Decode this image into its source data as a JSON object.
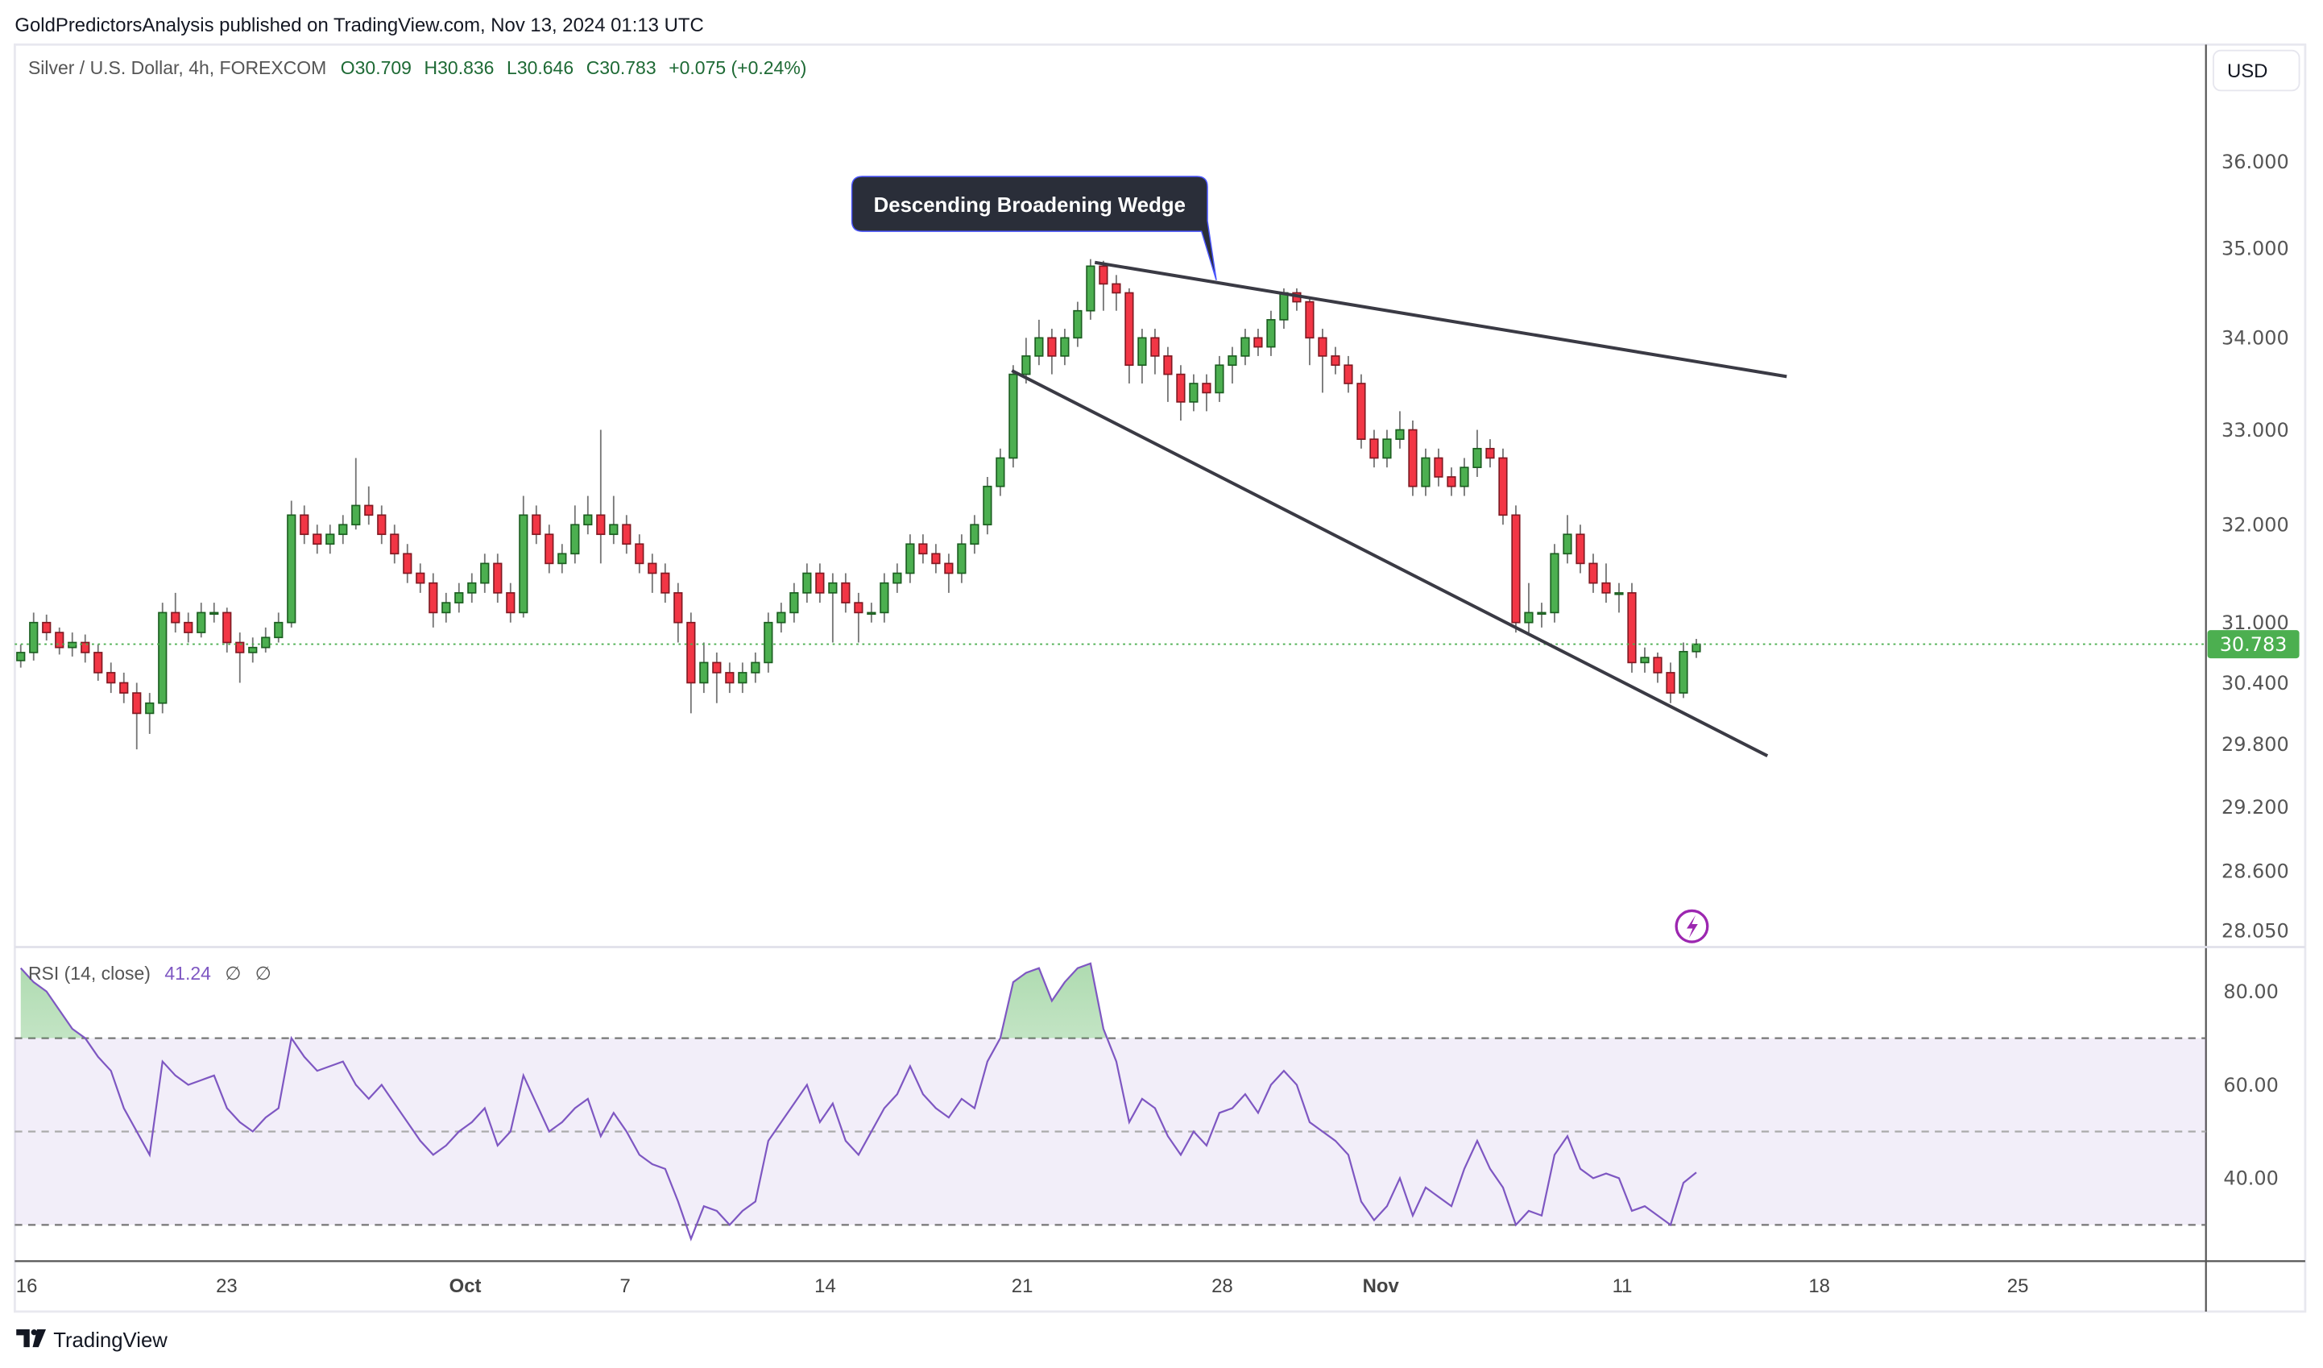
{
  "header": {
    "published": "GoldPredictorsAnalysis published on TradingView.com, Nov 13, 2024 01:13 UTC"
  },
  "legend": {
    "symbol": "Silver / U.S. Dollar, 4h, FOREXCOM",
    "open": "O30.709",
    "high": "H30.836",
    "low": "L30.646",
    "close": "C30.783",
    "change": "+0.075 (+0.24%)"
  },
  "currency_button": "USD",
  "last_price_label": "30.783",
  "annotation": "Descending Broadening Wedge",
  "rsi_legend": {
    "name": "RSI (14, close)",
    "value": "41.24",
    "extra1": "∅",
    "extra2": "∅"
  },
  "footer": {
    "brand": "TradingView"
  },
  "icons": {
    "alert": "lightning-icon",
    "logo": "tradingview-logo-icon"
  },
  "colors": {
    "up": "#4caf50",
    "up_border": "#1b5e20",
    "down": "#f23645",
    "down_border": "#801922",
    "wick": "#777777",
    "rsi": "#7e57c2",
    "last_price": "#4caf50",
    "trendline": "#3a3a44",
    "annotation_bg": "#2a2e39"
  },
  "chart_data": [
    {
      "type": "candlestick",
      "title": "Silver / U.S. Dollar, 4h, FOREXCOM",
      "y_scale": "log",
      "ylim": [
        28.05,
        36.2
      ],
      "y_ticks": [
        "36.000",
        "35.000",
        "34.000",
        "33.000",
        "32.000",
        "31.000",
        "30.400",
        "29.800",
        "29.200",
        "28.600",
        "28.050"
      ],
      "x_ticks": [
        "16",
        "23",
        "Oct",
        "7",
        "14",
        "21",
        "28",
        "Nov",
        "11",
        "18",
        "25"
      ],
      "last_price": 30.783,
      "grid": false,
      "open": [
        30.62,
        30.7,
        31.0,
        30.9,
        30.75,
        30.8,
        30.7,
        30.5,
        30.4,
        30.3,
        30.1,
        30.2,
        31.1,
        31.0,
        30.9,
        31.1,
        31.1,
        30.8,
        30.7,
        30.75,
        30.85,
        31.0,
        32.1,
        31.9,
        31.8,
        31.9,
        32.0,
        32.2,
        32.1,
        31.9,
        31.7,
        31.5,
        31.4,
        31.1,
        31.2,
        31.3,
        31.4,
        31.6,
        31.3,
        31.1,
        32.1,
        31.9,
        31.6,
        31.7,
        32.0,
        32.1,
        31.9,
        32.0,
        31.8,
        31.6,
        31.5,
        31.3,
        31.0,
        30.4,
        30.6,
        30.5,
        30.4,
        30.5,
        30.6,
        31.0,
        31.1,
        31.3,
        31.5,
        31.3,
        31.4,
        31.2,
        31.1,
        31.1,
        31.4,
        31.5,
        31.8,
        31.7,
        31.6,
        31.5,
        31.8,
        32.0,
        32.4,
        32.7,
        33.6,
        33.8,
        34.0,
        33.8,
        34.0,
        34.3,
        34.8,
        34.6,
        34.5,
        33.7,
        34.0,
        33.8,
        33.6,
        33.3,
        33.5,
        33.4,
        33.7,
        33.8,
        34.0,
        33.9,
        34.2,
        34.5,
        34.4,
        34.0,
        33.8,
        33.7,
        33.5,
        32.9,
        32.7,
        32.9,
        33.0,
        32.4,
        32.7,
        32.5,
        32.4,
        32.6,
        32.8,
        32.7,
        32.1,
        31.0,
        31.1,
        31.1,
        31.7,
        31.9,
        31.6,
        31.4,
        31.3,
        31.3,
        30.6,
        30.65,
        30.5,
        30.3,
        30.709
      ],
      "high": [
        30.78,
        31.1,
        31.08,
        30.95,
        30.9,
        30.88,
        30.78,
        30.6,
        30.5,
        30.4,
        30.3,
        31.2,
        31.3,
        31.1,
        31.2,
        31.2,
        31.15,
        30.9,
        30.85,
        30.95,
        31.1,
        32.25,
        32.2,
        32.0,
        32.0,
        32.1,
        32.7,
        32.4,
        32.2,
        32.0,
        31.8,
        31.6,
        31.5,
        31.3,
        31.4,
        31.5,
        31.7,
        31.7,
        31.4,
        32.3,
        32.2,
        32.0,
        31.8,
        32.2,
        32.3,
        33.0,
        32.3,
        32.1,
        31.9,
        31.7,
        31.6,
        31.4,
        31.1,
        30.8,
        30.7,
        30.6,
        30.6,
        30.7,
        31.1,
        31.2,
        31.4,
        31.6,
        31.6,
        31.5,
        31.5,
        31.3,
        31.2,
        31.5,
        31.6,
        31.9,
        31.9,
        31.8,
        31.7,
        31.9,
        32.1,
        32.5,
        32.8,
        33.7,
        34.0,
        34.2,
        34.1,
        34.1,
        34.4,
        34.88,
        34.86,
        34.7,
        34.55,
        34.1,
        34.1,
        33.9,
        33.7,
        33.6,
        33.6,
        33.8,
        33.9,
        34.1,
        34.1,
        34.3,
        34.55,
        34.55,
        34.45,
        34.1,
        33.9,
        33.8,
        33.6,
        33.0,
        33.0,
        33.2,
        33.1,
        32.8,
        32.8,
        32.6,
        32.7,
        33.0,
        32.9,
        32.8,
        32.2,
        31.4,
        31.2,
        31.8,
        32.1,
        32.0,
        31.7,
        31.6,
        31.4,
        31.4,
        30.75,
        30.7,
        30.6,
        30.8,
        30.836
      ],
      "low": [
        30.55,
        30.62,
        30.82,
        30.68,
        30.66,
        30.6,
        30.42,
        30.3,
        30.2,
        29.75,
        29.9,
        30.1,
        30.9,
        30.8,
        30.85,
        31.0,
        30.7,
        30.4,
        30.6,
        30.7,
        30.8,
        30.95,
        31.8,
        31.7,
        31.7,
        31.8,
        31.95,
        32.0,
        31.8,
        31.6,
        31.4,
        31.3,
        30.95,
        31.0,
        31.1,
        31.2,
        31.3,
        31.2,
        31.0,
        31.05,
        31.8,
        31.5,
        31.5,
        31.6,
        31.9,
        31.6,
        31.8,
        31.7,
        31.5,
        31.3,
        31.2,
        30.8,
        30.1,
        30.3,
        30.2,
        30.3,
        30.3,
        30.4,
        30.5,
        30.9,
        31.0,
        31.2,
        31.2,
        30.8,
        31.1,
        30.8,
        31.0,
        31.0,
        31.3,
        31.4,
        31.6,
        31.5,
        31.3,
        31.4,
        31.7,
        31.9,
        32.3,
        32.6,
        33.5,
        33.7,
        33.6,
        33.7,
        33.9,
        34.2,
        34.3,
        34.3,
        33.5,
        33.5,
        33.6,
        33.3,
        33.1,
        33.2,
        33.2,
        33.3,
        33.5,
        33.7,
        33.8,
        33.8,
        34.1,
        34.3,
        33.7,
        33.4,
        33.6,
        33.4,
        32.8,
        32.6,
        32.6,
        32.8,
        32.3,
        32.3,
        32.4,
        32.3,
        32.3,
        32.5,
        32.6,
        32.0,
        30.9,
        30.9,
        30.95,
        31.0,
        31.6,
        31.5,
        31.3,
        31.2,
        31.1,
        30.5,
        30.5,
        30.4,
        30.2,
        30.25,
        30.646
      ],
      "close": [
        30.7,
        31.0,
        30.9,
        30.75,
        30.8,
        30.7,
        30.5,
        30.4,
        30.3,
        30.1,
        30.2,
        31.1,
        31.0,
        30.9,
        31.1,
        31.1,
        30.8,
        30.7,
        30.75,
        30.85,
        31.0,
        32.1,
        31.9,
        31.8,
        31.9,
        32.0,
        32.2,
        32.1,
        31.9,
        31.7,
        31.5,
        31.4,
        31.1,
        31.2,
        31.3,
        31.4,
        31.6,
        31.3,
        31.1,
        32.1,
        31.9,
        31.6,
        31.7,
        32.0,
        32.1,
        31.9,
        32.0,
        31.8,
        31.6,
        31.5,
        31.3,
        31.0,
        30.4,
        30.6,
        30.5,
        30.4,
        30.5,
        30.6,
        31.0,
        31.1,
        31.3,
        31.5,
        31.3,
        31.4,
        31.2,
        31.1,
        31.1,
        31.4,
        31.5,
        31.8,
        31.7,
        31.6,
        31.5,
        31.8,
        32.0,
        32.4,
        32.7,
        33.6,
        33.8,
        34.0,
        33.8,
        34.0,
        34.3,
        34.8,
        34.6,
        34.5,
        33.7,
        34.0,
        33.8,
        33.6,
        33.3,
        33.5,
        33.4,
        33.7,
        33.8,
        34.0,
        33.9,
        34.2,
        34.5,
        34.4,
        34.0,
        33.8,
        33.7,
        33.5,
        32.9,
        32.7,
        32.9,
        33.0,
        32.4,
        32.7,
        32.5,
        32.4,
        32.6,
        32.8,
        32.7,
        32.1,
        31.0,
        31.1,
        31.1,
        31.7,
        31.9,
        31.6,
        31.4,
        31.3,
        31.3,
        30.6,
        30.65,
        30.5,
        30.3,
        30.709,
        30.783
      ]
    },
    {
      "type": "line",
      "title": "RSI (14, close)",
      "ylim": [
        24,
        90
      ],
      "y_ticks": [
        "80.00",
        "60.00",
        "40.00"
      ],
      "bands": {
        "upper": 70,
        "middle": 50,
        "lower": 30
      },
      "values": [
        85,
        82,
        80,
        76,
        72,
        70,
        66,
        63,
        55,
        50,
        45,
        65,
        62,
        60,
        61,
        62,
        55,
        52,
        50,
        53,
        55,
        70,
        66,
        63,
        64,
        65,
        60,
        57,
        60,
        56,
        52,
        48,
        45,
        47,
        50,
        52,
        55,
        47,
        50,
        62,
        56,
        50,
        52,
        55,
        57,
        49,
        54,
        50,
        45,
        43,
        42,
        35,
        27,
        34,
        33,
        30,
        33,
        35,
        48,
        52,
        56,
        60,
        52,
        56,
        48,
        45,
        50,
        55,
        58,
        64,
        58,
        55,
        53,
        57,
        55,
        65,
        70,
        82,
        84,
        85,
        78,
        82,
        85,
        86,
        72,
        65,
        52,
        57,
        55,
        49,
        45,
        50,
        47,
        54,
        55,
        58,
        54,
        60,
        63,
        60,
        52,
        50,
        48,
        45,
        35,
        31,
        34,
        40,
        32,
        38,
        36,
        34,
        42,
        48,
        42,
        38,
        30,
        33,
        32,
        45,
        49,
        42,
        40,
        41,
        40,
        33,
        34,
        32,
        30,
        39,
        41.24
      ]
    }
  ]
}
